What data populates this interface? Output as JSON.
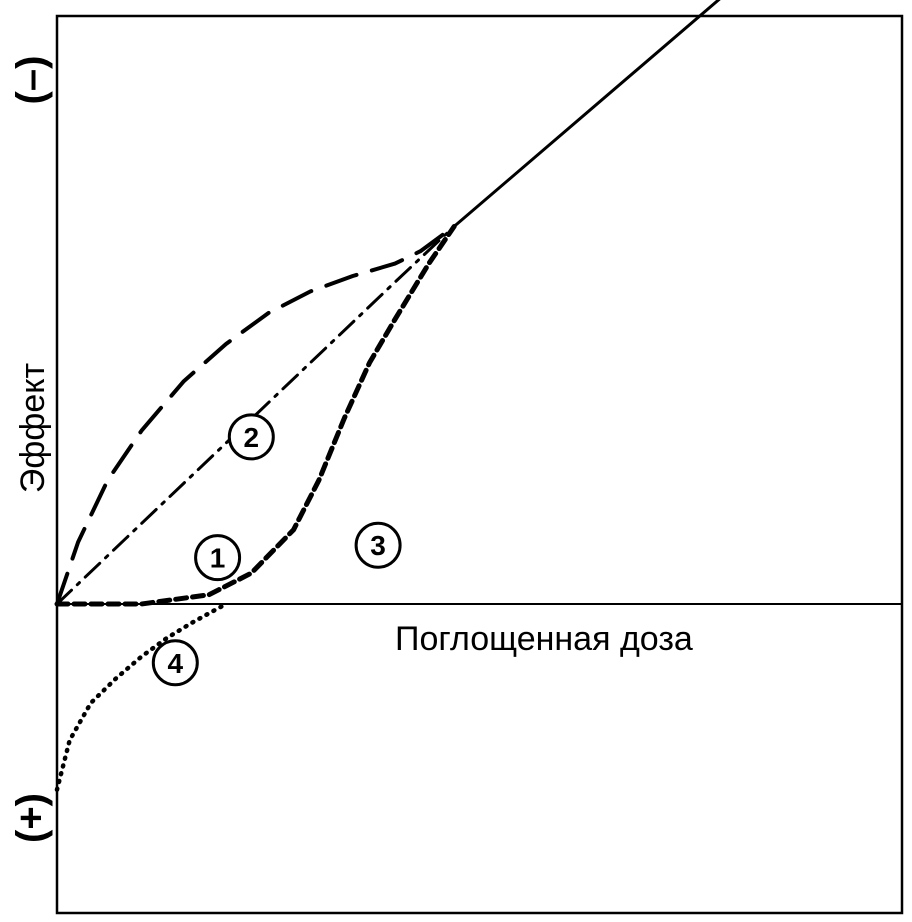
{
  "chart_data": {
    "type": "line",
    "title": "",
    "xlabel": "Поглощенная доза",
    "ylabel": "Эффект",
    "y_sign_top": "(–)",
    "y_sign_bottom": "(+)",
    "xlim": [
      0,
      10
    ],
    "ylim": [
      -3,
      9.5
    ],
    "grid": false,
    "legend": "none",
    "series": [
      {
        "name": "1",
        "style": "dash-dot",
        "x": [
          0,
          1,
          2,
          3,
          4,
          4.7
        ],
        "y": [
          0,
          1.3,
          2.6,
          3.9,
          5.2,
          6.1
        ]
      },
      {
        "name": "2",
        "style": "long-dash",
        "x": [
          0,
          0.25,
          0.6,
          1.0,
          1.5,
          2.0,
          2.5,
          3.0,
          3.5,
          4.0,
          4.3,
          4.7
        ],
        "y": [
          0,
          1.0,
          2.0,
          2.8,
          3.6,
          4.2,
          4.7,
          5.05,
          5.3,
          5.5,
          5.7,
          6.1
        ]
      },
      {
        "name": "3",
        "style": "short-dash",
        "x": [
          0,
          1.0,
          1.8,
          2.3,
          2.8,
          3.1,
          3.4,
          3.7,
          4.0,
          4.4,
          4.7
        ],
        "y": [
          0,
          0.0,
          0.15,
          0.5,
          1.2,
          2.0,
          3.0,
          3.9,
          4.6,
          5.5,
          6.1
        ]
      },
      {
        "name": "4",
        "style": "dotted",
        "x": [
          0,
          0.15,
          0.4,
          0.7,
          1.0,
          1.3,
          1.6,
          2.0
        ],
        "y": [
          -3.0,
          -2.2,
          -1.6,
          -1.2,
          -0.85,
          -0.55,
          -0.3,
          0.0
        ]
      },
      {
        "name": "",
        "style": "solid",
        "x": [
          4.7,
          10
        ],
        "y": [
          6.1,
          12.3
        ]
      }
    ],
    "markers": [
      {
        "label": "1",
        "x": 1.9,
        "y": 0.75
      },
      {
        "label": "2",
        "x": 2.3,
        "y": 2.7
      },
      {
        "label": "3",
        "x": 3.8,
        "y": 0.95
      },
      {
        "label": "4",
        "x": 1.4,
        "y": -0.95
      }
    ],
    "colors": {
      "ink": "#000000",
      "background": "#ffffff"
    }
  }
}
